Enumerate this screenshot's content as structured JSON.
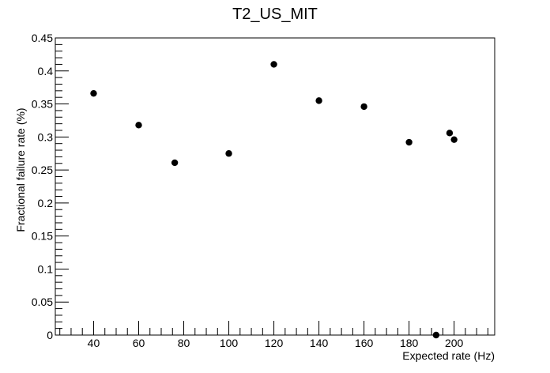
{
  "chart_data": {
    "type": "scatter",
    "title": "T2_US_MIT",
    "xlabel": "Expected rate (Hz)",
    "ylabel": "Fractional failure rate (%)",
    "xlim": [
      23,
      218
    ],
    "ylim": [
      0,
      0.45
    ],
    "x_ticks": [
      40,
      60,
      80,
      100,
      120,
      140,
      160,
      180,
      200
    ],
    "x_tick_labels": [
      "40",
      "60",
      "80",
      "100",
      "120",
      "140",
      "160",
      "180",
      "200"
    ],
    "y_ticks": [
      0,
      0.05,
      0.1,
      0.15,
      0.2,
      0.25,
      0.3,
      0.35,
      0.4,
      0.45
    ],
    "y_tick_labels": [
      "0",
      "0.05",
      "0.1",
      "0.15",
      "0.2",
      "0.25",
      "0.3",
      "0.35",
      "0.4",
      "0.45"
    ],
    "grid": false,
    "legend": "none",
    "marker_color": "#000000",
    "points": [
      {
        "x": 40,
        "y": 0.366
      },
      {
        "x": 60,
        "y": 0.318
      },
      {
        "x": 76,
        "y": 0.261
      },
      {
        "x": 100,
        "y": 0.275
      },
      {
        "x": 120,
        "y": 0.41
      },
      {
        "x": 140,
        "y": 0.355
      },
      {
        "x": 160,
        "y": 0.346
      },
      {
        "x": 180,
        "y": 0.292
      },
      {
        "x": 192,
        "y": 0.0
      },
      {
        "x": 198,
        "y": 0.306
      },
      {
        "x": 200,
        "y": 0.296
      }
    ]
  }
}
